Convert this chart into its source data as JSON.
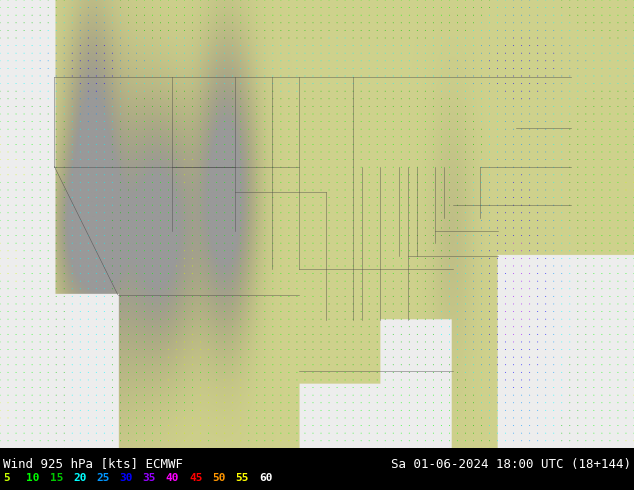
{
  "title_left": "Wind 925 hPa [kts] ECMWF",
  "title_right": "Sa 01-06-2024 18:00 UTC (18+144)",
  "legend_values": [
    5,
    10,
    15,
    20,
    25,
    30,
    35,
    40,
    45,
    50,
    55,
    60
  ],
  "legend_colors": [
    "#c8ff00",
    "#00ff00",
    "#00c800",
    "#00ffff",
    "#0096ff",
    "#0000ff",
    "#9600ff",
    "#ff00ff",
    "#ff0000",
    "#ff9600",
    "#ffff00",
    "#ffffff"
  ],
  "bg_color": "#000000",
  "fig_width": 6.34,
  "fig_height": 4.9,
  "dpi": 100,
  "text_color": "#ffffff",
  "font_size_title": 9,
  "font_size_legend": 8,
  "map_bg_land": "#c8e6a0",
  "map_bg_ocean": "#f0f0f0",
  "terrain_color": "#808080",
  "state_border_color": "#404040",
  "lon_min": -130,
  "lon_max": -60,
  "lat_min": 20,
  "lat_max": 55
}
